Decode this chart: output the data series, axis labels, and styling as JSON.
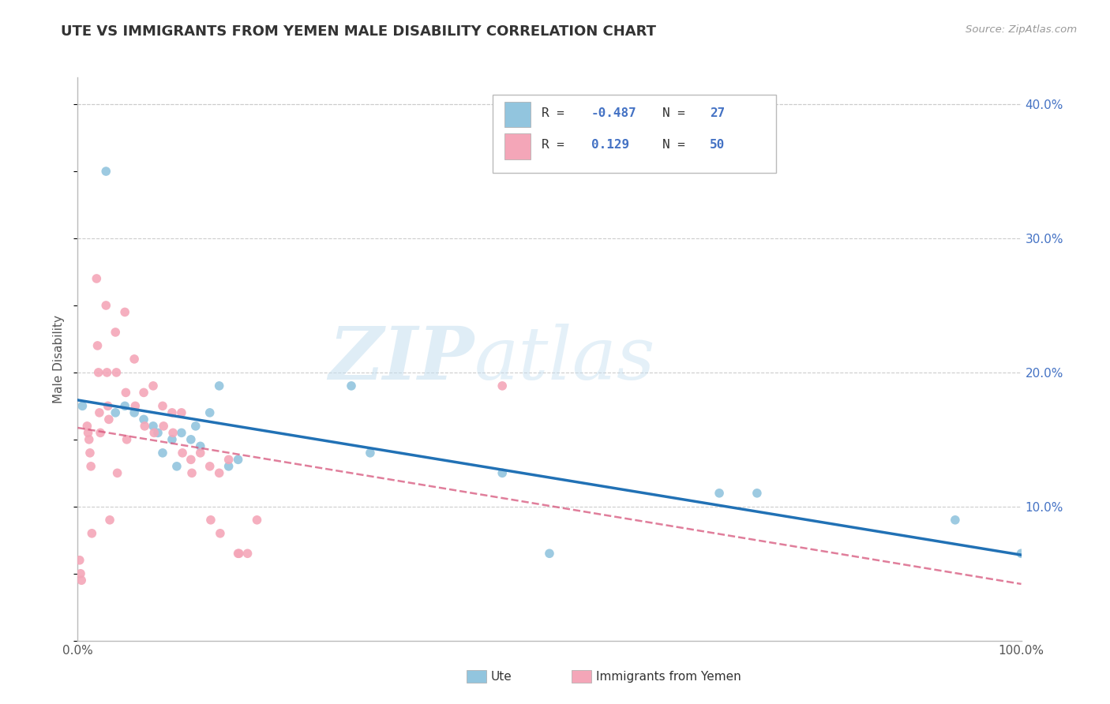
{
  "title": "UTE VS IMMIGRANTS FROM YEMEN MALE DISABILITY CORRELATION CHART",
  "source": "Source: ZipAtlas.com",
  "ylabel": "Male Disability",
  "xlim": [
    0,
    1.0
  ],
  "ylim": [
    0,
    0.42
  ],
  "legend_R_blue": "-0.487",
  "legend_N_blue": "27",
  "legend_R_pink": "0.129",
  "legend_N_pink": "50",
  "blue_color": "#92c5de",
  "pink_color": "#f4a6b8",
  "blue_line_color": "#2171b5",
  "pink_line_color": "#d6537a",
  "watermark_zip": "ZIP",
  "watermark_atlas": "atlas",
  "background_color": "#ffffff",
  "grid_color": "#cccccc",
  "blue_points_x": [
    0.005,
    0.03,
    0.04,
    0.05,
    0.06,
    0.07,
    0.08,
    0.085,
    0.09,
    0.1,
    0.105,
    0.11,
    0.12,
    0.125,
    0.13,
    0.14,
    0.15,
    0.16,
    0.17,
    0.29,
    0.31,
    0.45,
    0.5,
    0.68,
    0.72,
    0.93,
    1.0
  ],
  "blue_points_y": [
    0.175,
    0.35,
    0.17,
    0.175,
    0.17,
    0.165,
    0.16,
    0.155,
    0.14,
    0.15,
    0.13,
    0.155,
    0.15,
    0.16,
    0.145,
    0.17,
    0.19,
    0.13,
    0.135,
    0.19,
    0.14,
    0.125,
    0.065,
    0.11,
    0.11,
    0.09,
    0.065
  ],
  "pink_points_x": [
    0.002,
    0.003,
    0.004,
    0.01,
    0.011,
    0.012,
    0.013,
    0.014,
    0.015,
    0.02,
    0.021,
    0.022,
    0.023,
    0.024,
    0.03,
    0.031,
    0.032,
    0.033,
    0.034,
    0.04,
    0.041,
    0.042,
    0.05,
    0.051,
    0.052,
    0.06,
    0.061,
    0.07,
    0.071,
    0.08,
    0.081,
    0.09,
    0.091,
    0.1,
    0.101,
    0.11,
    0.111,
    0.12,
    0.121,
    0.13,
    0.14,
    0.141,
    0.15,
    0.151,
    0.16,
    0.17,
    0.171,
    0.18,
    0.19,
    0.45
  ],
  "pink_points_y": [
    0.06,
    0.05,
    0.045,
    0.16,
    0.155,
    0.15,
    0.14,
    0.13,
    0.08,
    0.27,
    0.22,
    0.2,
    0.17,
    0.155,
    0.25,
    0.2,
    0.175,
    0.165,
    0.09,
    0.23,
    0.2,
    0.125,
    0.245,
    0.185,
    0.15,
    0.21,
    0.175,
    0.185,
    0.16,
    0.19,
    0.155,
    0.175,
    0.16,
    0.17,
    0.155,
    0.17,
    0.14,
    0.135,
    0.125,
    0.14,
    0.13,
    0.09,
    0.125,
    0.08,
    0.135,
    0.065,
    0.065,
    0.065,
    0.09,
    0.19
  ]
}
